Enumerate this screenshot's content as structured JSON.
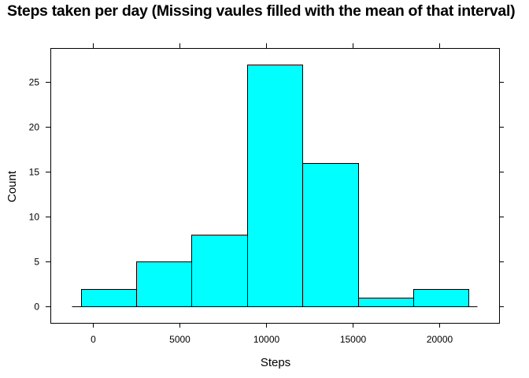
{
  "chart_data": {
    "type": "bar",
    "title": "Steps taken per day (Missing vaules filled with the mean of that interval)",
    "xlabel": "Steps",
    "ylabel": "Count",
    "bins": [
      {
        "from": -700,
        "to": 2500,
        "count": 2
      },
      {
        "from": 2500,
        "to": 5700,
        "count": 5
      },
      {
        "from": 5700,
        "to": 8900,
        "count": 8
      },
      {
        "from": 8900,
        "to": 12100,
        "count": 27
      },
      {
        "from": 12100,
        "to": 15300,
        "count": 16
      },
      {
        "from": 15300,
        "to": 18500,
        "count": 1
      },
      {
        "from": 18500,
        "to": 21700,
        "count": 2
      }
    ],
    "xlim": [
      -2450,
      23450
    ],
    "ylim": [
      -1.8,
      28.8
    ],
    "xticks": [
      0,
      5000,
      10000,
      15000,
      20000
    ],
    "yticks": [
      0,
      5,
      10,
      15,
      20,
      25
    ],
    "baseline_range": [
      -1200,
      22200
    ],
    "bar_color": "#00ffff",
    "bar_stroke": "#000000",
    "grid": false,
    "legend": "none"
  }
}
